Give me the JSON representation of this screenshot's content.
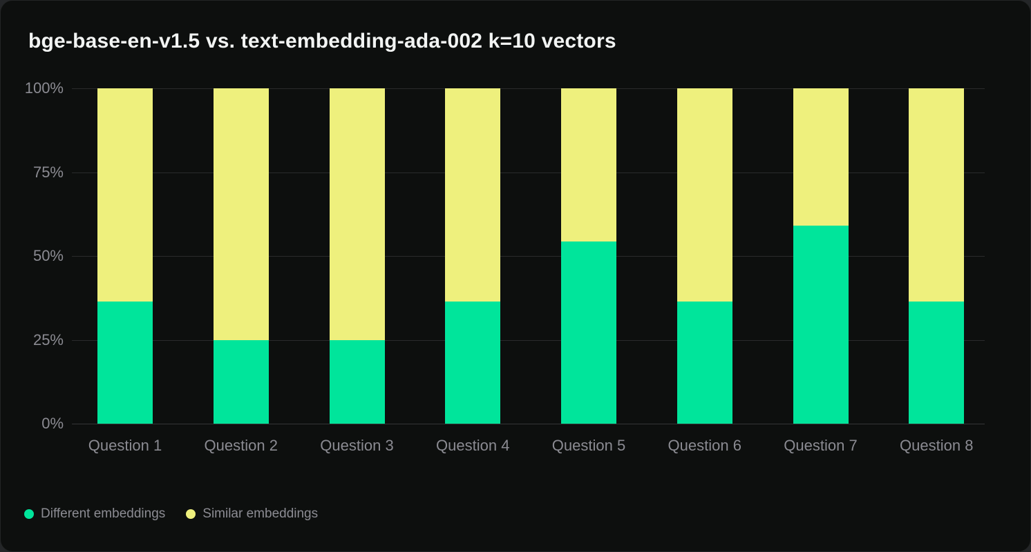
{
  "title": "bge-base-en-v1.5 vs. text-embedding-ada-002 k=10 vectors",
  "colors": {
    "card_background": "#0D0F0E",
    "page_background": "#242628",
    "gridline": "#2A2B2C",
    "axis_text": "#8B8B92",
    "title_text": "#F2F4F3",
    "different_embeddings": "#00E59B",
    "similar_embeddings": "#EEF07D"
  },
  "legend": [
    {
      "label": "Different embeddings",
      "color": "#00E59B"
    },
    {
      "label": "Similar embeddings",
      "color": "#EEF07D"
    }
  ],
  "chart_data": {
    "type": "bar",
    "stacked": true,
    "title": "bge-base-en-v1.5 vs. text-embedding-ada-002 k=10 vectors",
    "categories": [
      "Question 1",
      "Question 2",
      "Question 3",
      "Question 4",
      "Question 5",
      "Question 6",
      "Question 7",
      "Question 8"
    ],
    "series": [
      {
        "name": "Different embeddings",
        "color": "#00E59B",
        "values": [
          36.4,
          25,
          25,
          36.4,
          54.4,
          36.4,
          59,
          36.4
        ]
      },
      {
        "name": "Similar embeddings",
        "color": "#EEF07D",
        "values": [
          63.6,
          75,
          75,
          63.6,
          45.6,
          63.6,
          41,
          63.6
        ]
      }
    ],
    "xlabel": "",
    "ylabel": "",
    "unit": "%",
    "ylim": [
      0,
      100
    ],
    "y_ticks": [
      "0%",
      "25%",
      "50%",
      "75%",
      "100%"
    ],
    "grid": true,
    "legend_position": "bottom-left"
  }
}
